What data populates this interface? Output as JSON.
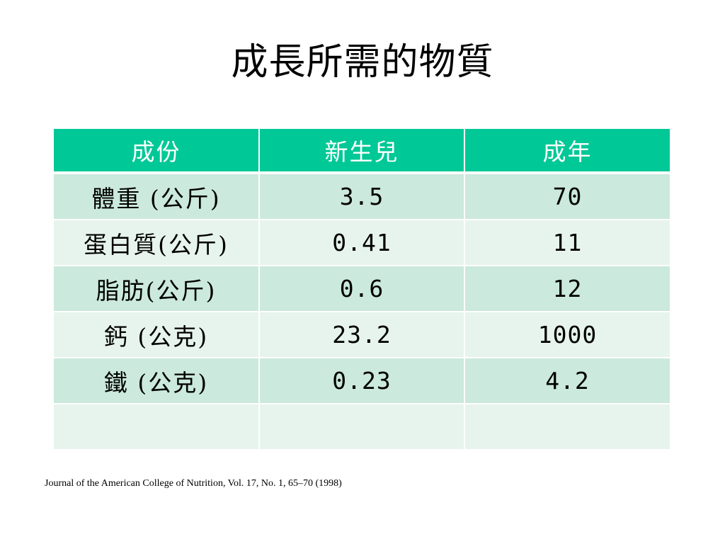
{
  "slide": {
    "title": "成長所需的物質",
    "citation": "Journal of the American College of Nutrition, Vol. 17, No. 1, 65–70 (1998)"
  },
  "table": {
    "headers": [
      "成份",
      "新生兒",
      "成年"
    ],
    "rows": [
      [
        "體重 (公斤)",
        "3.5",
        "70"
      ],
      [
        "蛋白質(公斤)",
        "0.41",
        "11"
      ],
      [
        "脂肪(公斤)",
        "0.6",
        "12"
      ],
      [
        "鈣 (公克)",
        "23.2",
        "1000"
      ],
      [
        "鐵 (公克)",
        "0.23",
        "4.2"
      ],
      [
        "",
        "",
        ""
      ]
    ]
  },
  "colors": {
    "header_bg": "#00c896",
    "header_text": "#ffffff",
    "row_dark": "#cbe9dd",
    "row_light": "#e7f4ee",
    "background": "#ffffff"
  }
}
